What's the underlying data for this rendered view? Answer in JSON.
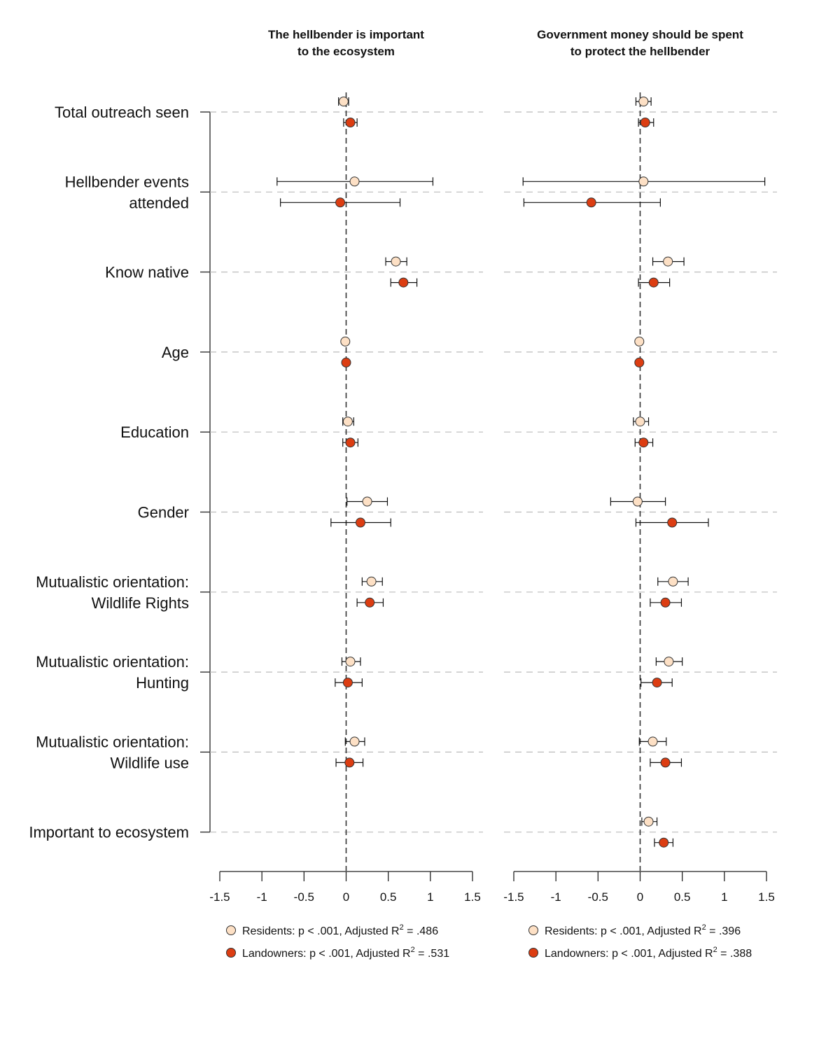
{
  "colors": {
    "residents": "#FDE0C5",
    "landowners": "#DC3D12"
  },
  "row_labels": [
    [
      "Total outreach seen"
    ],
    [
      "Hellbender events",
      "attended"
    ],
    [
      "Know native"
    ],
    [
      "Age"
    ],
    [
      "Education"
    ],
    [
      "Gender"
    ],
    [
      "Mutualistic orientation:",
      "Wildlife Rights"
    ],
    [
      "Mutualistic orientation:",
      "Hunting"
    ],
    [
      "Mutualistic orientation:",
      "Wildlife use"
    ],
    [
      "Important to ecosystem"
    ]
  ],
  "chart_data": [
    {
      "type": "scatter",
      "title": [
        "The hellbender is important",
        "to the ecosystem"
      ],
      "xlim": [
        -1.5,
        1.5
      ],
      "xticks": [
        "-1.5",
        "-1",
        "-0.5",
        "0",
        "0.5",
        "1",
        "1.5"
      ],
      "reference_line": 0,
      "series": [
        {
          "name": "Residents",
          "legend": "Residents: p < .001, Adjusted R² = .486",
          "estimates": [
            -0.03,
            0.1,
            0.59,
            -0.01,
            0.02,
            0.25,
            0.3,
            0.05,
            0.1,
            null
          ],
          "ci_low": [
            -0.09,
            -0.82,
            0.47,
            null,
            -0.04,
            0.01,
            0.19,
            -0.05,
            -0.01,
            null
          ],
          "ci_high": [
            0.03,
            1.03,
            0.72,
            null,
            0.09,
            0.49,
            0.43,
            0.17,
            0.22,
            null
          ]
        },
        {
          "name": "Landowners",
          "legend": "Landowners: p < .001, Adjusted R² = .531",
          "estimates": [
            0.05,
            -0.07,
            0.68,
            0.0,
            0.05,
            0.17,
            0.28,
            0.02,
            0.04,
            null
          ],
          "ci_low": [
            -0.03,
            -0.78,
            0.53,
            null,
            -0.04,
            -0.18,
            0.13,
            -0.13,
            -0.12,
            null
          ],
          "ci_high": [
            0.13,
            0.64,
            0.84,
            null,
            0.14,
            0.53,
            0.44,
            0.19,
            0.2,
            null
          ]
        }
      ]
    },
    {
      "type": "scatter",
      "title": [
        "Government money should be spent",
        "to protect the hellbender"
      ],
      "xlim": [
        -1.5,
        1.5
      ],
      "xticks": [
        "-1.5",
        "-1",
        "-0.5",
        "0",
        "0.5",
        "1",
        "1.5"
      ],
      "reference_line": 0,
      "series": [
        {
          "name": "Residents",
          "legend": "Residents: p < .001, Adjusted R² = .396",
          "estimates": [
            0.04,
            0.04,
            0.33,
            -0.01,
            0.0,
            -0.03,
            0.39,
            0.34,
            0.15,
            0.1
          ],
          "ci_low": [
            -0.05,
            -1.39,
            0.15,
            null,
            -0.08,
            -0.35,
            0.21,
            0.19,
            -0.01,
            0.02
          ],
          "ci_high": [
            0.13,
            1.48,
            0.52,
            null,
            0.1,
            0.3,
            0.57,
            0.5,
            0.31,
            0.2
          ]
        },
        {
          "name": "Landowners",
          "legend": "Landowners: p < .001, Adjusted R² = .388",
          "estimates": [
            0.06,
            -0.58,
            0.16,
            -0.01,
            0.04,
            0.38,
            0.3,
            0.2,
            0.3,
            0.28
          ],
          "ci_low": [
            -0.02,
            -1.38,
            -0.02,
            null,
            -0.06,
            -0.05,
            0.12,
            0.01,
            0.12,
            0.17
          ],
          "ci_high": [
            0.16,
            0.24,
            0.35,
            null,
            0.15,
            0.81,
            0.49,
            0.38,
            0.49,
            0.39
          ]
        }
      ]
    }
  ]
}
